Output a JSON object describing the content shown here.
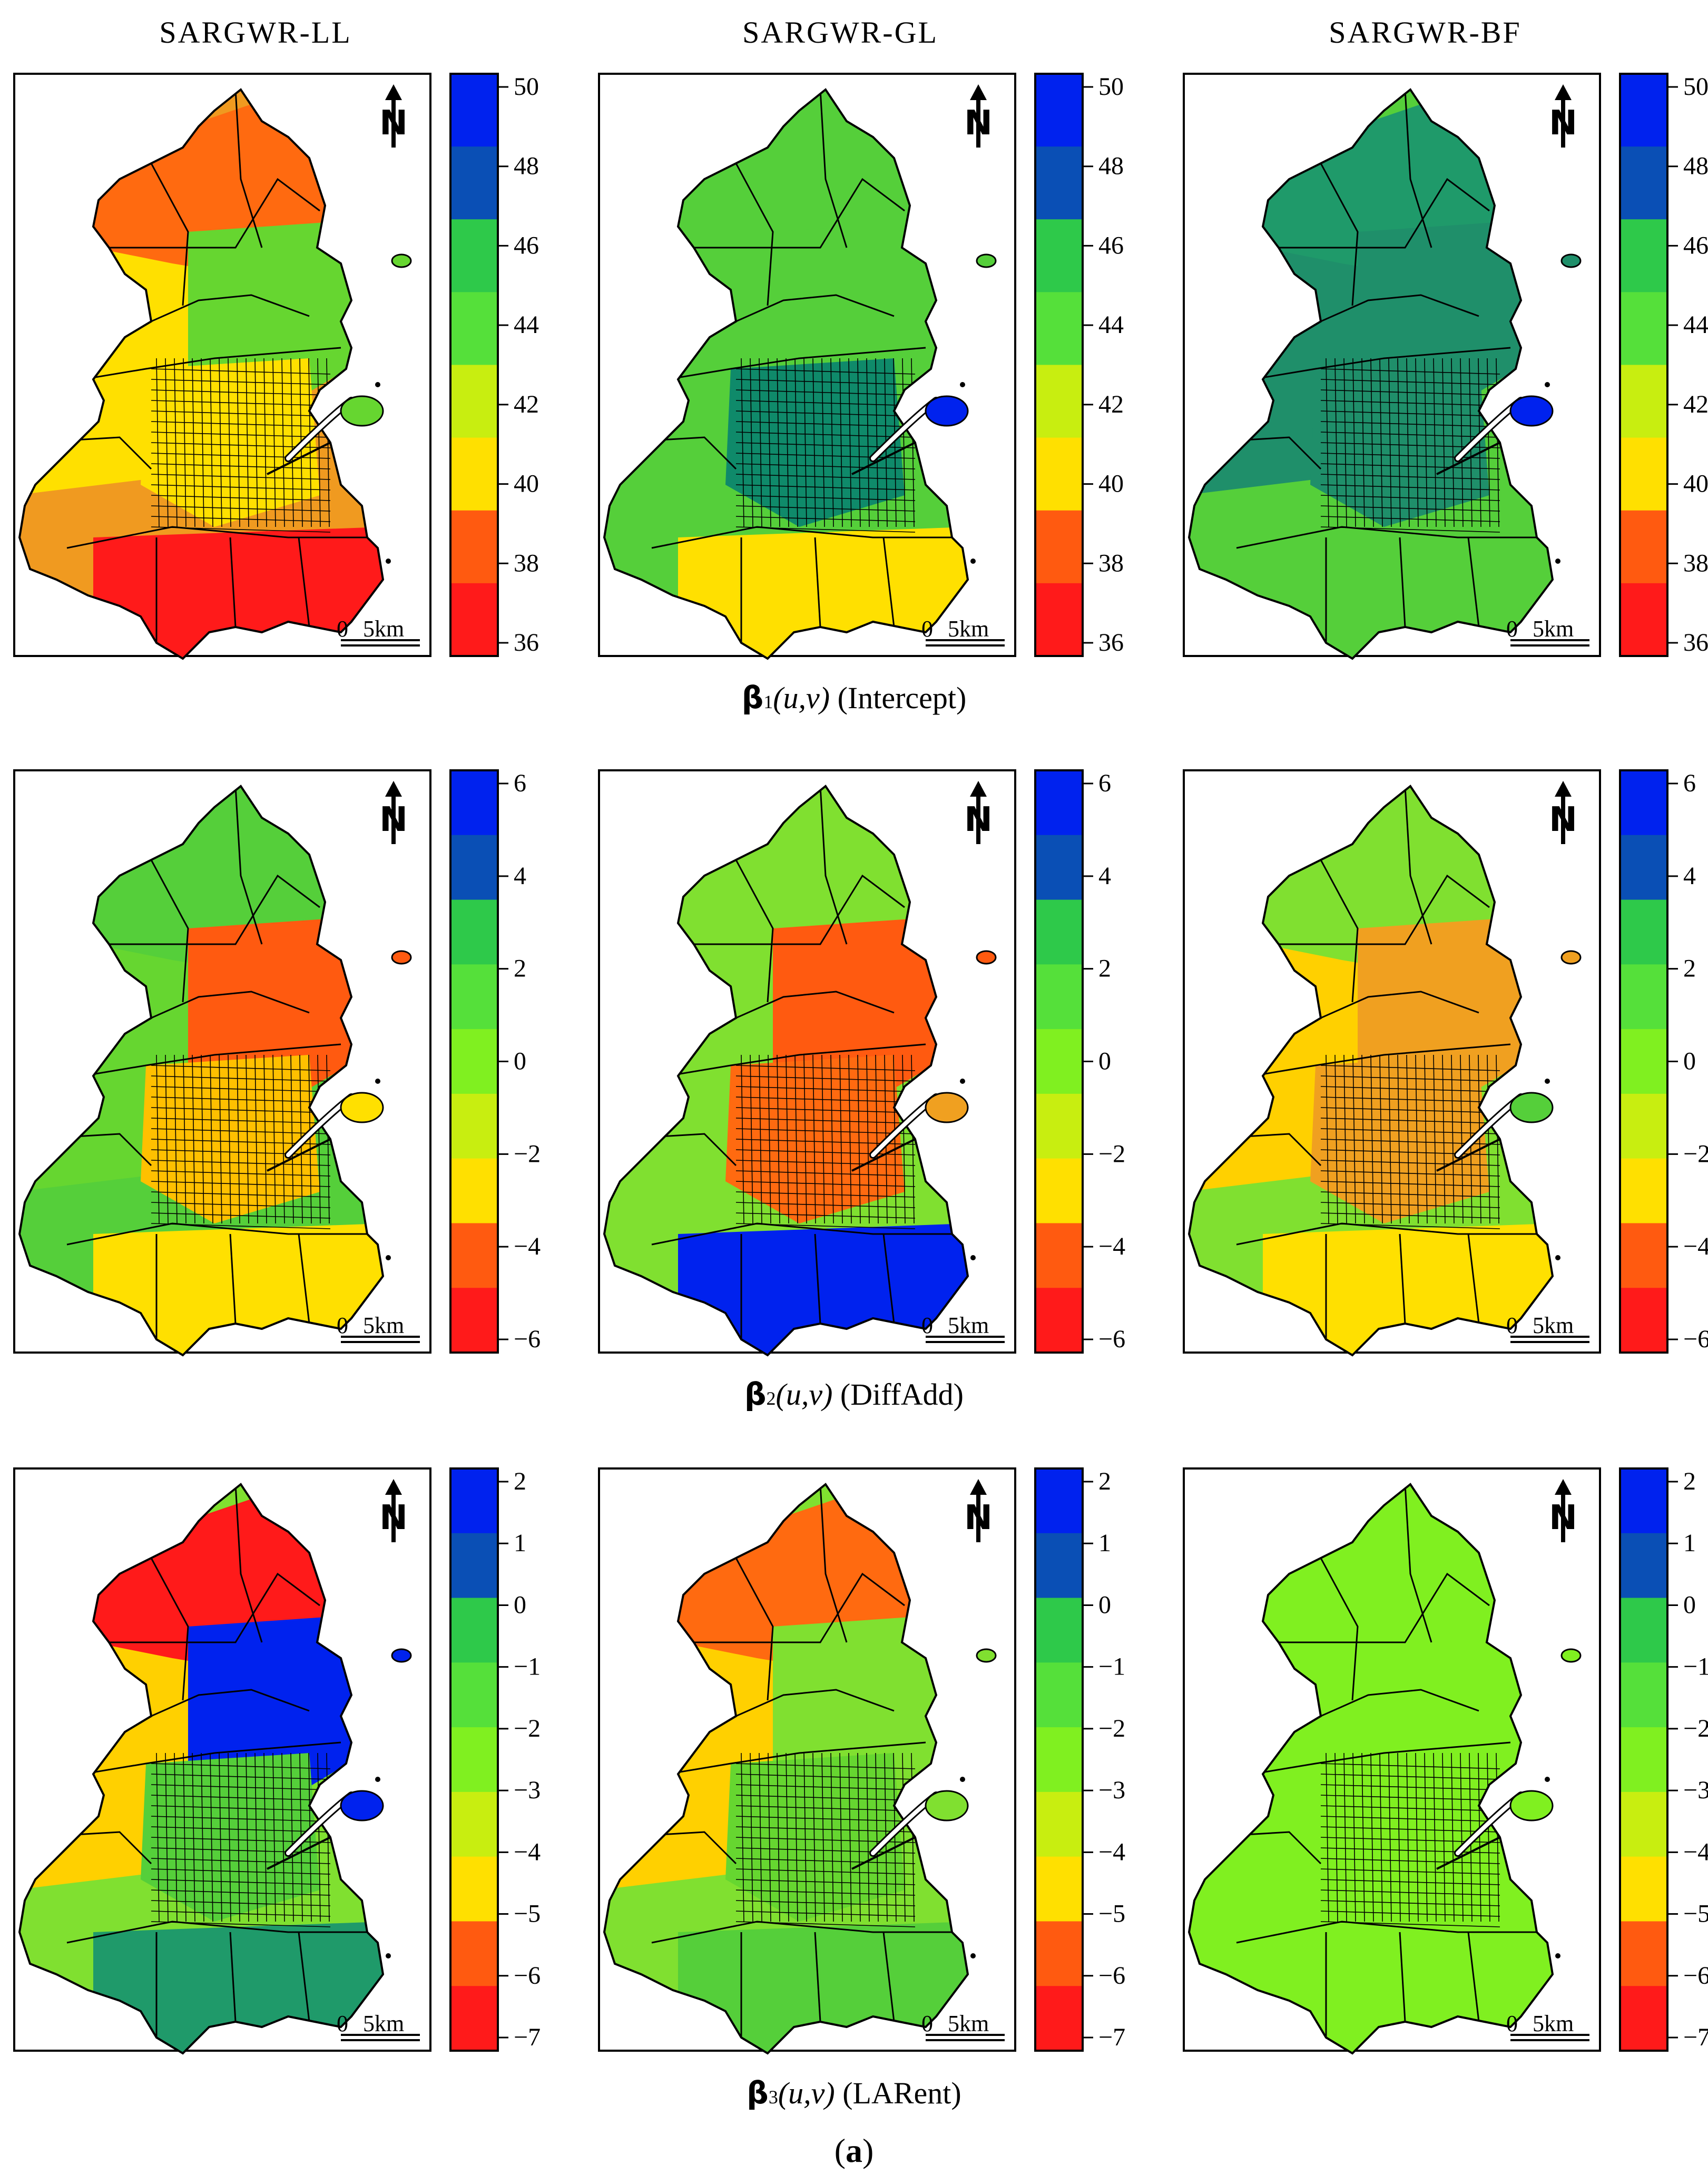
{
  "columns": [
    "SARGWR-LL",
    "SARGWR-GL",
    "SARGWR-BF"
  ],
  "figure_label": "a",
  "scale_bar": {
    "zero": "0",
    "distance": "5km"
  },
  "north_arrow": "N",
  "rows": [
    {
      "caption": {
        "symbol": "β",
        "sub": "1",
        "args": "(u,v)",
        "variable": "(Intercept)"
      },
      "legend": {
        "ticks": [
          "50",
          "48",
          "46",
          "44",
          "42",
          "40",
          "38",
          "36"
        ],
        "colors": [
          "#0022ee",
          "#0a4fb5",
          "#2ec94a",
          "#55e03a",
          "#c8ee10",
          "#ffe000",
          "#ff5a10",
          "#ff1a1a"
        ]
      },
      "maps": [
        {
          "outer": "#f09a20",
          "mid": "#ffe000",
          "core": "#ffe000",
          "north": "#ff6a10",
          "south": "#ff1a1a",
          "east": "#66d630",
          "bay": "#66d630"
        },
        {
          "outer": "#55cf3a",
          "mid": "#55cf3a",
          "core": "#0f8a6a",
          "north": "#55cf3a",
          "south": "#ffe000",
          "east": "#55cf3a",
          "bay": "#0022ee"
        },
        {
          "outer": "#55cf3a",
          "mid": "#1f8f6a",
          "core": "#1f8f6a",
          "north": "#1f9a6a",
          "south": "#55cf3a",
          "east": "#1f8f6a",
          "bay": "#0022ee"
        }
      ]
    },
    {
      "caption": {
        "symbol": "β",
        "sub": "2",
        "args": "(u,v)",
        "variable": "(DiffAdd)"
      },
      "legend": {
        "ticks": [
          "6",
          "4",
          "2",
          "0",
          "−2",
          "−4",
          "−6"
        ],
        "colors": [
          "#0022ee",
          "#0a4fb5",
          "#2ec94a",
          "#55e03a",
          "#80f020",
          "#c8ee10",
          "#ffe000",
          "#ff5a10",
          "#ff1a1a"
        ]
      },
      "maps": [
        {
          "outer": "#55cf3a",
          "mid": "#66d630",
          "core": "#ffc000",
          "north": "#55cf3a",
          "south": "#ffe000",
          "east": "#ff5a10",
          "bay": "#ffe000"
        },
        {
          "outer": "#80e030",
          "mid": "#80e030",
          "core": "#ff6a10",
          "north": "#80e030",
          "south": "#0022ee",
          "east": "#ff5a10",
          "bay": "#f0a020"
        },
        {
          "outer": "#80e030",
          "mid": "#ffd000",
          "core": "#f0a020",
          "north": "#80e030",
          "south": "#ffe000",
          "east": "#f0a020",
          "bay": "#55cf3a"
        }
      ]
    },
    {
      "caption": {
        "symbol": "β",
        "sub": "3",
        "args": "(u,v)",
        "variable": "(LARent)"
      },
      "legend": {
        "ticks": [
          "2",
          "1",
          "0",
          "−1",
          "−2",
          "−3",
          "−4",
          "−5",
          "−6",
          "−7"
        ],
        "colors": [
          "#0022ee",
          "#0a4fb5",
          "#2ec94a",
          "#55e03a",
          "#80f020",
          "#c8ee10",
          "#ffe000",
          "#ff5a10",
          "#ff1a1a"
        ]
      },
      "maps": [
        {
          "outer": "#80e030",
          "mid": "#ffd000",
          "core": "#55cf3a",
          "north": "#ff1a1a",
          "south": "#1f9a6a",
          "east": "#0022ee",
          "bay": "#0022ee"
        },
        {
          "outer": "#80e030",
          "mid": "#ffd000",
          "core": "#66d630",
          "north": "#ff6a10",
          "south": "#55cf3a",
          "east": "#80e030",
          "bay": "#80e030"
        },
        {
          "outer": "#80f020",
          "mid": "#80f020",
          "core": "#80f020",
          "north": "#80f020",
          "south": "#80f020",
          "east": "#80f020",
          "bay": "#80f020"
        }
      ]
    }
  ]
}
